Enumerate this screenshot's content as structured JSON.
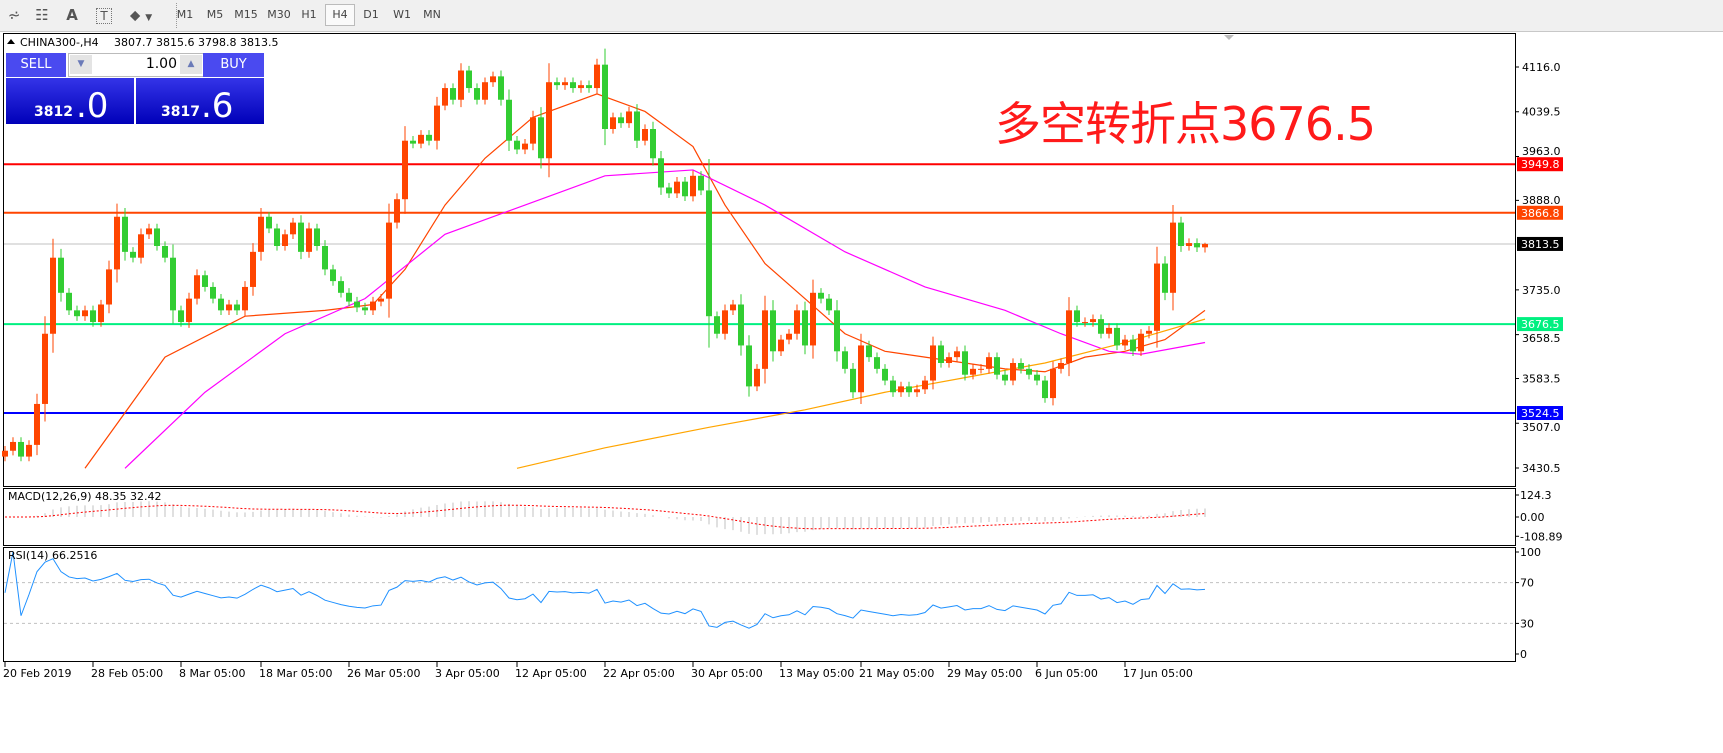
{
  "toolbar": {
    "icons": [
      "elliott-wave-icon",
      "fibonacci-fan-icon",
      "text-label-icon",
      "text-box-icon",
      "arrows-icon"
    ],
    "icon_glyphs": [
      "⩫",
      "☷",
      "A",
      "T",
      "⬥"
    ],
    "timeframes": [
      "M1",
      "M5",
      "M15",
      "M30",
      "H1",
      "H4",
      "D1",
      "W1",
      "MN"
    ],
    "active_timeframe": "H4"
  },
  "header": {
    "symbol": "CHINA300-,H4",
    "ohlc": "3807.7 3815.6 3798.8 3813.5"
  },
  "trade_panel": {
    "sell_label": "SELL",
    "buy_label": "BUY",
    "lot": "1.00",
    "sell_price_small": "3812",
    "sell_price_big": ".0",
    "buy_price_small": "3817",
    "buy_price_big": ".6"
  },
  "annotation": "多空转折点3676.5",
  "colors": {
    "bull": "#ff4500",
    "bear": "#32cd32",
    "ma_fast": "#ff4500",
    "ma_mid": "#ff00ff",
    "ma_slow": "#ffa500",
    "rsi": "#1e90ff",
    "macd_hist": "#c0c0c0",
    "macd_signal": "#ff0000"
  },
  "chart_data": {
    "type": "candlestick",
    "price_axis_ticks": [
      "4116.0",
      "4039.5",
      "3963.0",
      "3888.0",
      "3735.0",
      "3658.5",
      "3583.5",
      "3507.0",
      "3430.5"
    ],
    "x_tick_labels": [
      "20 Feb 2019",
      "28 Feb 05:00",
      "8 Mar 05:00",
      "18 Mar 05:00",
      "26 Mar 05:00",
      "3 Apr 05:00",
      "12 Apr 05:00",
      "22 Apr 05:00",
      "30 Apr 05:00",
      "13 May 05:00",
      "21 May 05:00",
      "29 May 05:00",
      "6 Jun 05:00",
      "17 Jun 05:00"
    ],
    "x_tick_candle_index": [
      0,
      11,
      22,
      32,
      43,
      54,
      64,
      75,
      86,
      97,
      107,
      118,
      129,
      140
    ],
    "last_candle": {
      "open": 3807.7,
      "high": 3815.6,
      "low": 3798.8,
      "close": 3813.5
    },
    "closes": [
      3460,
      3475,
      3450,
      3470,
      3540,
      3660,
      3790,
      3730,
      3700,
      3690,
      3700,
      3680,
      3710,
      3770,
      3860,
      3800,
      3790,
      3830,
      3840,
      3810,
      3790,
      3700,
      3680,
      3720,
      3760,
      3740,
      3720,
      3700,
      3710,
      3700,
      3740,
      3800,
      3860,
      3840,
      3810,
      3830,
      3850,
      3800,
      3840,
      3810,
      3770,
      3750,
      3730,
      3715,
      3705,
      3700,
      3715,
      3720,
      3850,
      3890,
      3990,
      3985,
      4000,
      3990,
      4050,
      4080,
      4060,
      4110,
      4080,
      4060,
      4090,
      4100,
      4060,
      3990,
      3975,
      3985,
      4030,
      3960,
      4090,
      4085,
      4090,
      4080,
      4085,
      4080,
      4120,
      4010,
      4030,
      4020,
      4040,
      3990,
      4010,
      3960,
      3910,
      3900,
      3920,
      3895,
      3930,
      3905,
      3690,
      3660,
      3700,
      3710,
      3640,
      3570,
      3600,
      3700,
      3630,
      3650,
      3660,
      3700,
      3640,
      3730,
      3720,
      3700,
      3630,
      3600,
      3560,
      3640,
      3620,
      3600,
      3580,
      3560,
      3570,
      3560,
      3565,
      3580,
      3640,
      3610,
      3620,
      3630,
      3590,
      3600,
      3600,
      3620,
      3590,
      3580,
      3610,
      3600,
      3590,
      3580,
      3550,
      3600,
      3610,
      3700,
      3680,
      3680,
      3685,
      3660,
      3670,
      3640,
      3650,
      3630,
      3660,
      3665,
      3780,
      3730,
      3850,
      3810,
      3815,
      3807.7,
      3813.5
    ],
    "moving_averages": [
      {
        "color_key": "ma_fast",
        "points": [
          [
            10,
            3430
          ],
          [
            20,
            3620
          ],
          [
            30,
            3690
          ],
          [
            40,
            3700
          ],
          [
            46,
            3710
          ],
          [
            50,
            3770
          ],
          [
            55,
            3880
          ],
          [
            60,
            3960
          ],
          [
            66,
            4030
          ],
          [
            74,
            4070
          ],
          [
            80,
            4040
          ],
          [
            86,
            3980
          ],
          [
            90,
            3880
          ],
          [
            95,
            3780
          ],
          [
            100,
            3720
          ],
          [
            105,
            3660
          ],
          [
            110,
            3630
          ],
          [
            115,
            3620
          ],
          [
            120,
            3610
          ],
          [
            125,
            3600
          ],
          [
            130,
            3595
          ],
          [
            135,
            3620
          ],
          [
            140,
            3630
          ],
          [
            145,
            3650
          ],
          [
            150,
            3700
          ]
        ]
      },
      {
        "color_key": "ma_mid",
        "points": [
          [
            15,
            3430
          ],
          [
            25,
            3560
          ],
          [
            35,
            3660
          ],
          [
            45,
            3720
          ],
          [
            55,
            3830
          ],
          [
            65,
            3880
          ],
          [
            75,
            3930
          ],
          [
            86,
            3940
          ],
          [
            95,
            3880
          ],
          [
            105,
            3800
          ],
          [
            115,
            3740
          ],
          [
            125,
            3700
          ],
          [
            132,
            3660
          ],
          [
            138,
            3630
          ],
          [
            142,
            3625
          ],
          [
            150,
            3645
          ]
        ]
      },
      {
        "color_key": "ma_slow",
        "points": [
          [
            64,
            3430
          ],
          [
            75,
            3465
          ],
          [
            88,
            3500
          ],
          [
            100,
            3530
          ],
          [
            110,
            3560
          ],
          [
            120,
            3585
          ],
          [
            130,
            3610
          ],
          [
            140,
            3645
          ],
          [
            150,
            3685
          ]
        ]
      }
    ],
    "horizontal_lines": [
      {
        "value": 3949.8,
        "label": "3949.8",
        "color": "#ff0000"
      },
      {
        "value": 3866.8,
        "label": "3866.8",
        "color": "#ff4500"
      },
      {
        "value": 3813.5,
        "label": "3813.5",
        "color": "#c0c0c0",
        "tag_color": "#000000"
      },
      {
        "value": 3676.5,
        "label": "3676.5",
        "color": "#00f080"
      },
      {
        "value": 3524.5,
        "label": "3524.5",
        "color": "#0000ff"
      }
    ],
    "macd": {
      "label": "MACD(12,26,9) 48.35 32.42",
      "ticks": [
        "124.3",
        "0.00",
        "-108.89"
      ],
      "range": [
        -108.89,
        124.3
      ]
    },
    "rsi": {
      "label": "RSI(14) 66.2516",
      "ticks": [
        "100",
        "70",
        "30",
        "0"
      ],
      "levels": [
        70,
        30
      ],
      "range": [
        0,
        100
      ]
    }
  }
}
